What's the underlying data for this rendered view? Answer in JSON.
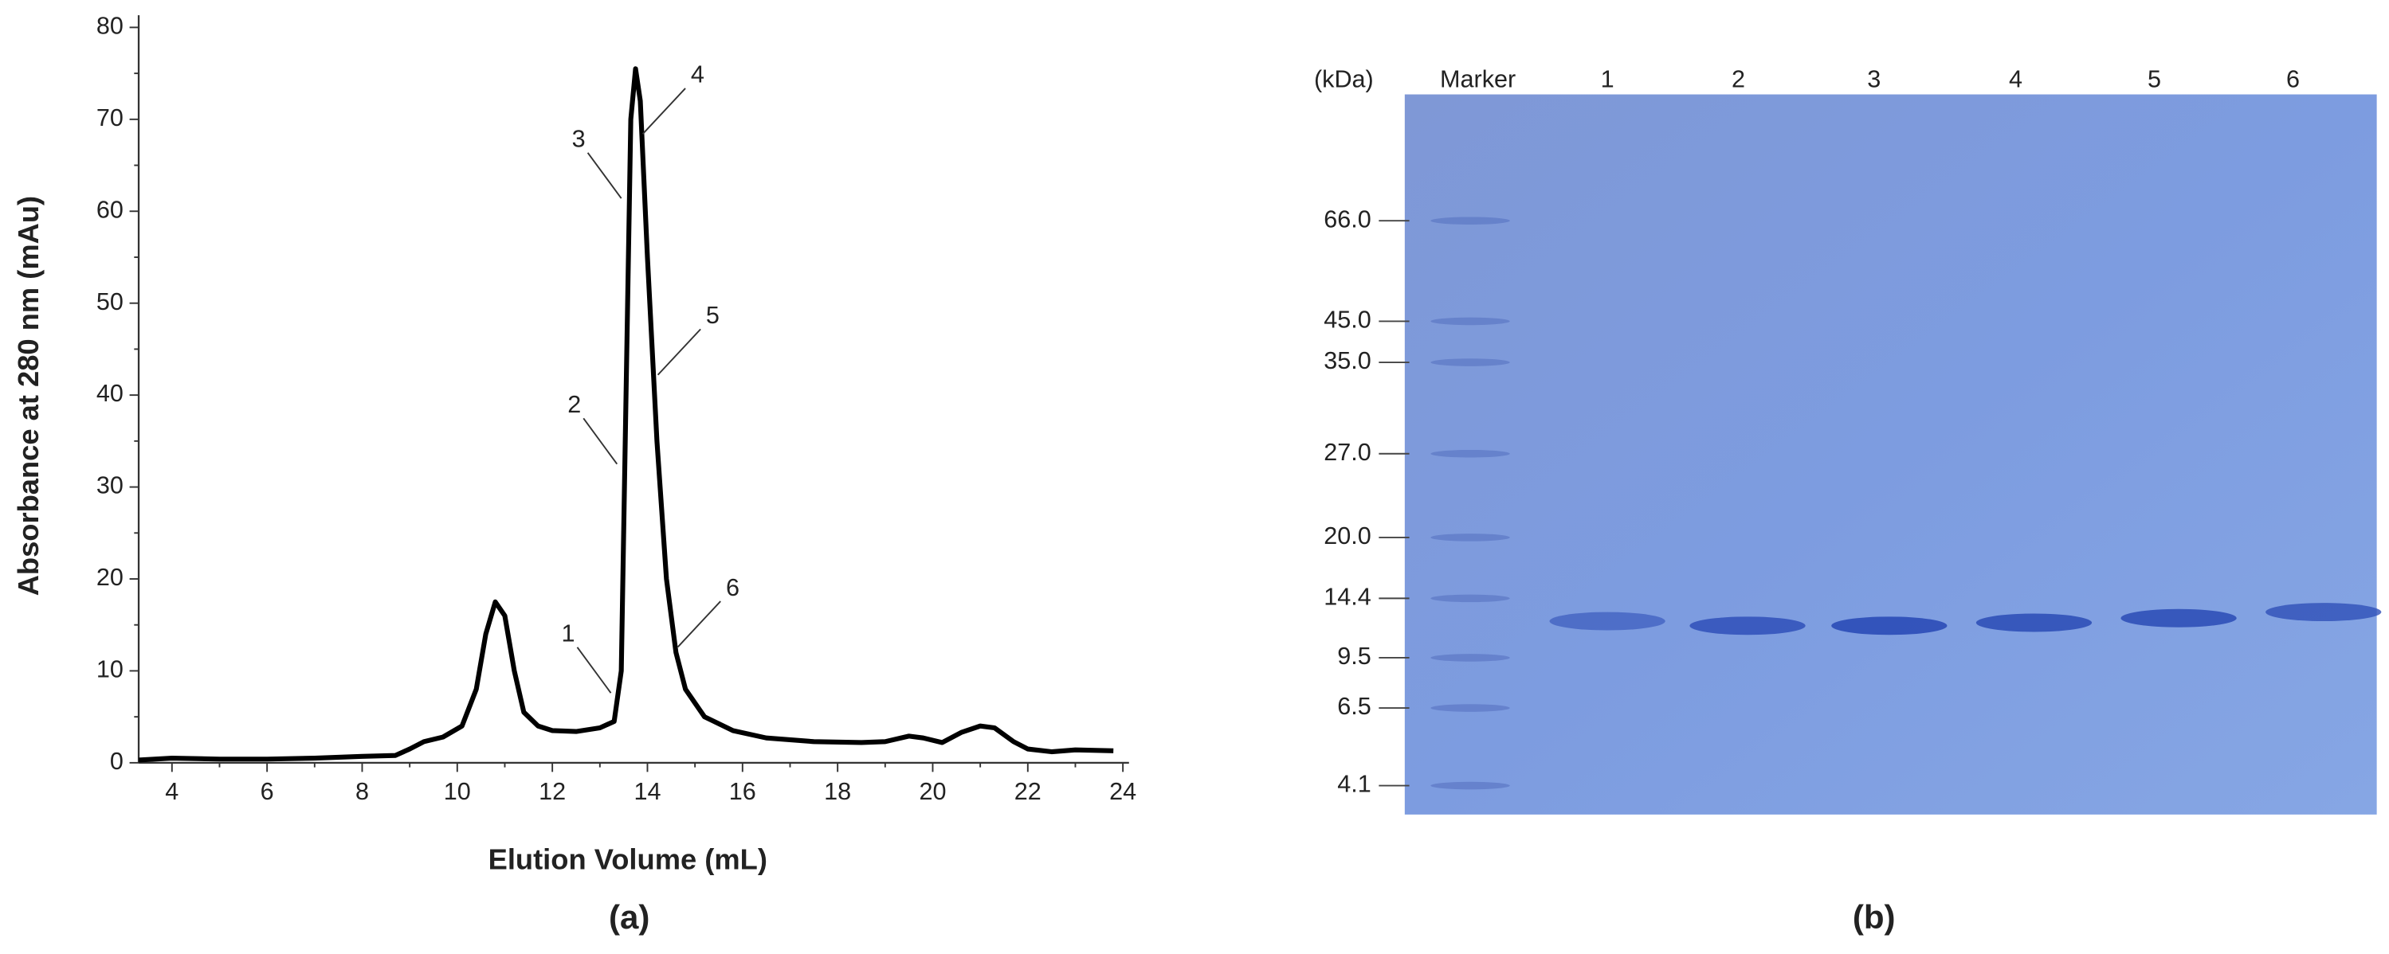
{
  "chart_data": {
    "type": "line",
    "caption": "(a)",
    "x_label": "Elution Volume (mL)",
    "y_label": "Absorbance at 280 nm (mAu)",
    "xlim": [
      3.3,
      24
    ],
    "xticks": [
      4,
      6,
      8,
      10,
      12,
      14,
      16,
      18,
      20,
      22,
      24
    ],
    "ylim": [
      0,
      80
    ],
    "yticks": [
      0,
      10,
      20,
      30,
      40,
      50,
      60,
      70,
      80
    ],
    "series": [
      {
        "color": "#000000",
        "x": [
          3.3,
          4,
          5,
          6,
          7,
          8,
          8.7,
          9,
          9.3,
          9.7,
          10.1,
          10.4,
          10.6,
          10.8,
          11.0,
          11.2,
          11.4,
          11.7,
          12,
          12.5,
          13,
          13.3,
          13.45,
          13.55,
          13.65,
          13.75,
          13.85,
          14.0,
          14.2,
          14.4,
          14.6,
          14.8,
          15.2,
          15.8,
          16.5,
          17.5,
          18.5,
          19,
          19.5,
          19.8,
          20.2,
          20.6,
          21,
          21.3,
          21.7,
          22,
          22.5,
          23,
          23.8
        ],
        "values": [
          0.3,
          0.5,
          0.4,
          0.4,
          0.5,
          0.7,
          0.8,
          1.5,
          2.3,
          2.8,
          4,
          8,
          14,
          17.5,
          16,
          10,
          5.5,
          4,
          3.5,
          3.4,
          3.8,
          4.5,
          10,
          40,
          70,
          75.5,
          72,
          55,
          35,
          20,
          12,
          8,
          5,
          3.5,
          2.7,
          2.3,
          2.2,
          2.3,
          2.9,
          2.7,
          2.2,
          3.3,
          4,
          3.8,
          2.3,
          1.5,
          1.2,
          1.4,
          1.3
        ]
      }
    ],
    "annotations": [
      {
        "text": "1",
        "x": 13.23,
        "y": 7.6
      },
      {
        "text": "2",
        "x": 13.36,
        "y": 32.5
      },
      {
        "text": "3",
        "x": 13.45,
        "y": 61.4
      },
      {
        "text": "4",
        "x": 13.9,
        "y": 68.4
      },
      {
        "text": "5",
        "x": 14.22,
        "y": 42.2
      },
      {
        "text": "6",
        "x": 14.64,
        "y": 12.6
      }
    ]
  },
  "gel": {
    "caption": "(b)",
    "unit": "(kDa)",
    "lanes": [
      "Marker",
      "1",
      "2",
      "3",
      "4",
      "5",
      "6"
    ],
    "marker_weights": [
      "66.0",
      "45.0",
      "35.0",
      "27.0",
      "20.0",
      "14.4",
      "9.5",
      "6.5",
      "4.1"
    ]
  }
}
